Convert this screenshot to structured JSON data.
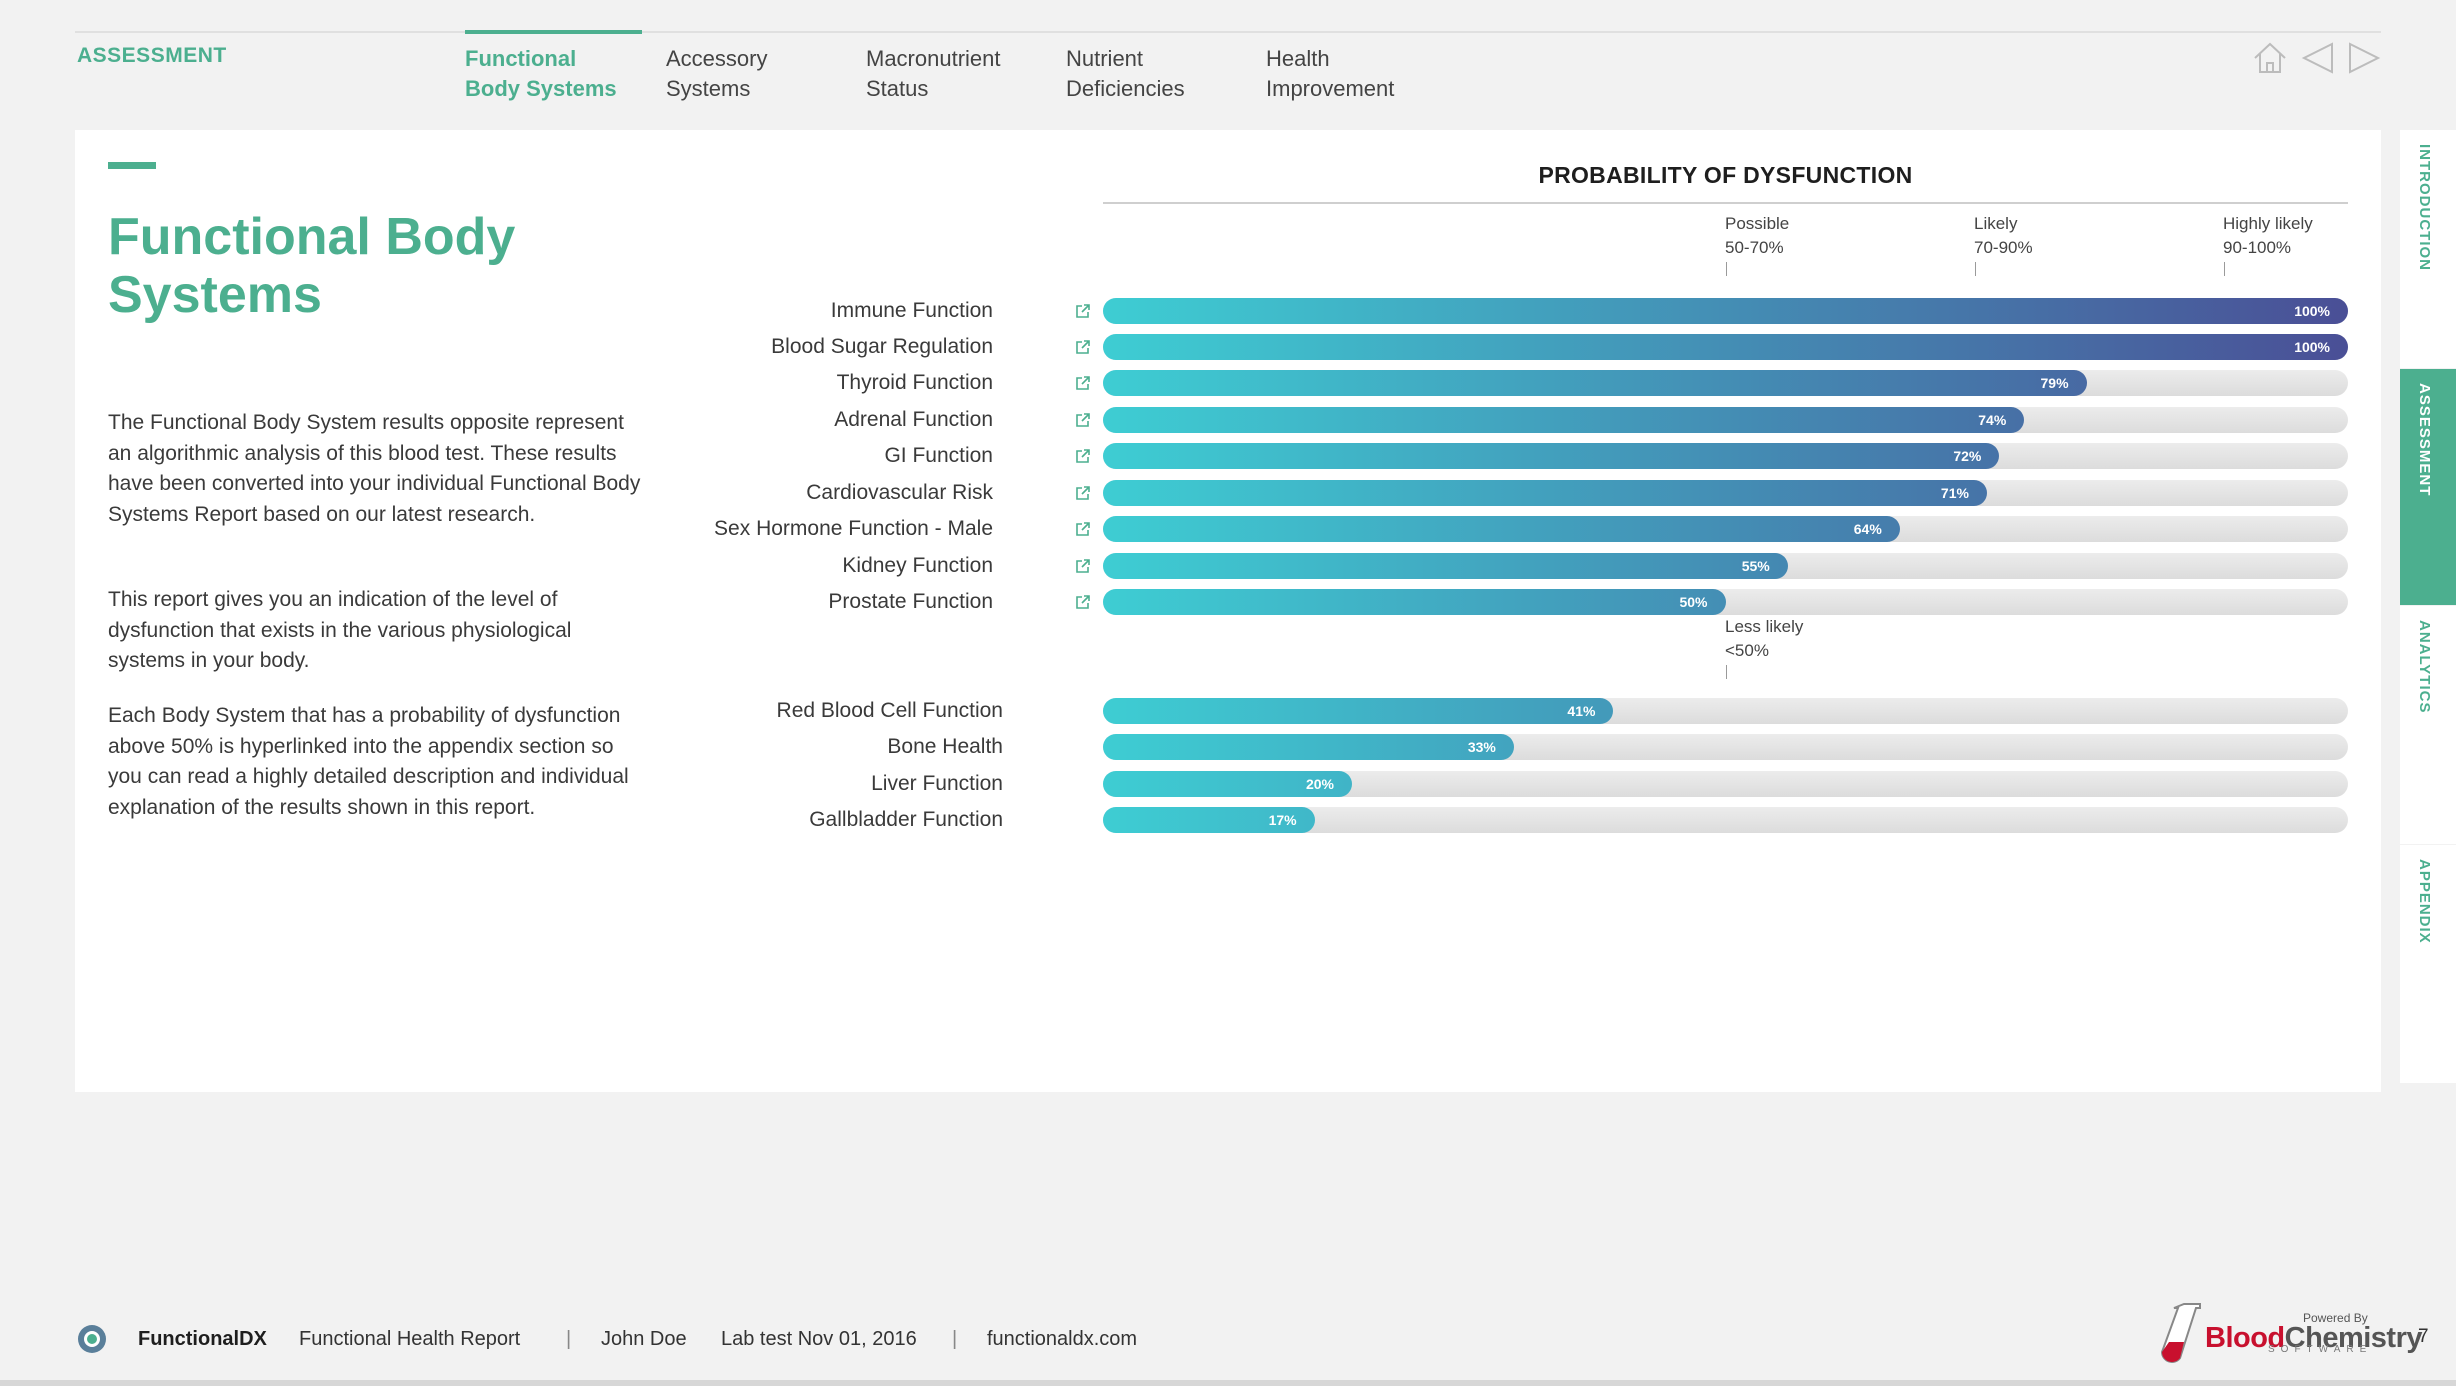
{
  "header": {
    "section": "ASSESSMENT",
    "tabs": [
      {
        "label": "Functional\nBody Systems",
        "active": true
      },
      {
        "label": "Accessory\nSystems",
        "active": false
      },
      {
        "label": "Macronutrient\nStatus",
        "active": false
      },
      {
        "label": "Nutrient\nDeficiencies",
        "active": false
      },
      {
        "label": "Health\nImprovement",
        "active": false
      }
    ],
    "nav_icons": [
      "home-icon",
      "previous-arrow-icon",
      "next-arrow-icon"
    ]
  },
  "main": {
    "title": "Functional Body Systems",
    "paragraphs": [
      "The Functional Body System results opposite represent an algorithmic analysis of this blood test. These results have been converted into your individual Functional Body Systems Report based on our latest research.",
      "This report gives you an indication of the level of dysfunction that exists in the various physiological systems in your body.",
      "Each Body System that has a probability of dysfunction above 50% is hyperlinked into the appendix section so you can read a highly detailed description and individual explanation of the results shown in this report."
    ]
  },
  "chart_data": {
    "type": "bar",
    "orientation": "horizontal",
    "title": "PROBABILITY OF DYSFUNCTION",
    "xlim": [
      0,
      100
    ],
    "thresholds": [
      {
        "label": "Possible",
        "range": "50-70%",
        "value": 50
      },
      {
        "label": "Likely",
        "range": "70-90%",
        "value": 70
      },
      {
        "label": "Highly likely",
        "range": "90-100%",
        "value": 90
      }
    ],
    "lower_threshold": {
      "label": "Less likely",
      "range": "<50%",
      "value": 50
    },
    "groups": [
      {
        "linked": true,
        "categories": [
          "Immune Function",
          "Blood Sugar Regulation",
          "Thyroid Function",
          "Adrenal Function",
          "GI Function",
          "Cardiovascular Risk",
          "Sex Hormone Function - Male",
          "Kidney Function",
          "Prostate Function"
        ],
        "values": [
          100,
          100,
          79,
          74,
          72,
          71,
          64,
          55,
          50
        ],
        "value_labels": [
          "100%",
          "100%",
          "79%",
          "74%",
          "72%",
          "71%",
          "64%",
          "55%",
          "50%"
        ]
      },
      {
        "linked": false,
        "categories": [
          "Red Blood Cell Function",
          "Bone Health",
          "Liver Function",
          "Gallbladder Function"
        ],
        "values": [
          41,
          33,
          20,
          17
        ],
        "value_labels": [
          "41%",
          "33%",
          "20%",
          "17%"
        ]
      }
    ],
    "colors": {
      "start": "#3ecdd3",
      "end": "#4a4f96",
      "track": "#e2e2e2"
    }
  },
  "side_tabs": [
    {
      "label": "INTRODUCTION",
      "active": false
    },
    {
      "label": "ASSESSMENT",
      "active": true
    },
    {
      "label": "ANALYTICS",
      "active": false
    },
    {
      "label": "APPENDIX",
      "active": false
    }
  ],
  "footer": {
    "brand": "FunctionalDX",
    "report": "Functional Health Report",
    "separator": "|",
    "patient": "John Doe",
    "lab_test": "Lab test Nov 01, 2016",
    "website": "functionaldx.com",
    "powered_by": "Powered By",
    "partner_blood": "Blood",
    "partner_chemistry": "Chemistry",
    "partner_software": "SOFTWARE",
    "page_number": "7"
  },
  "colors": {
    "accent": "#4caf8f"
  }
}
